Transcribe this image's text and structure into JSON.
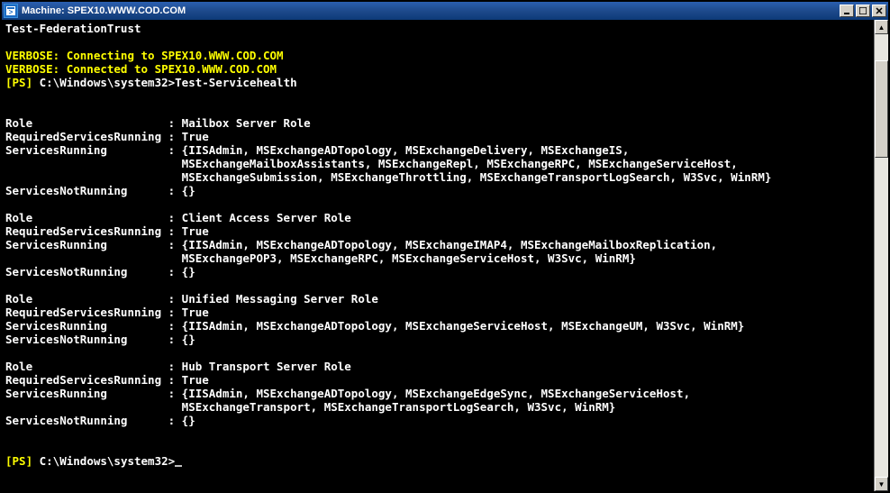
{
  "window": {
    "title": "Machine: SPEX10.WWW.COD.COM"
  },
  "console": {
    "line_cmd_prev": "Test-FederationTrust",
    "verbose_connecting": "VERBOSE: Connecting to SPEX10.WWW.COD.COM",
    "verbose_connected": "VERBOSE: Connected to SPEX10.WWW.COD.COM",
    "prompt_ps": "[PS]",
    "prompt_path": " C:\\Windows\\system32>",
    "cmd_current": "Test-Servicehealth",
    "label_role": "Role                    : ",
    "label_reqsvc": "RequiredServicesRunning : ",
    "label_svcrun": "ServicesRunning         : ",
    "label_svcnotrun": "ServicesNotRunning      : ",
    "indent": "                          ",
    "true": "True",
    "empty": "{}",
    "roles": [
      {
        "name": "Mailbox Server Role",
        "svc": [
          "{IISAdmin, MSExchangeADTopology, MSExchangeDelivery, MSExchangeIS,",
          "MSExchangeMailboxAssistants, MSExchangeRepl, MSExchangeRPC, MSExchangeServiceHost,",
          "MSExchangeSubmission, MSExchangeThrottling, MSExchangeTransportLogSearch, W3Svc, WinRM}"
        ]
      },
      {
        "name": "Client Access Server Role",
        "svc": [
          "{IISAdmin, MSExchangeADTopology, MSExchangeIMAP4, MSExchangeMailboxReplication,",
          "MSExchangePOP3, MSExchangeRPC, MSExchangeServiceHost, W3Svc, WinRM}"
        ]
      },
      {
        "name": "Unified Messaging Server Role",
        "svc": [
          "{IISAdmin, MSExchangeADTopology, MSExchangeServiceHost, MSExchangeUM, W3Svc, WinRM}"
        ]
      },
      {
        "name": "Hub Transport Server Role",
        "svc": [
          "{IISAdmin, MSExchangeADTopology, MSExchangeEdgeSync, MSExchangeServiceHost,",
          "MSExchangeTransport, MSExchangeTransportLogSearch, W3Svc, WinRM}"
        ]
      }
    ]
  },
  "scrollbar": {
    "thumb_top_pct": 6,
    "thumb_height_pct": 22
  },
  "colors": {
    "bg": "#000000",
    "fg": "#c0c0c0",
    "white": "#ffffff",
    "yellow": "#ffff00",
    "title_grad_top": "#2a5fb0",
    "title_grad_bot": "#0d3a78",
    "chrome": "#d4d0c8"
  }
}
